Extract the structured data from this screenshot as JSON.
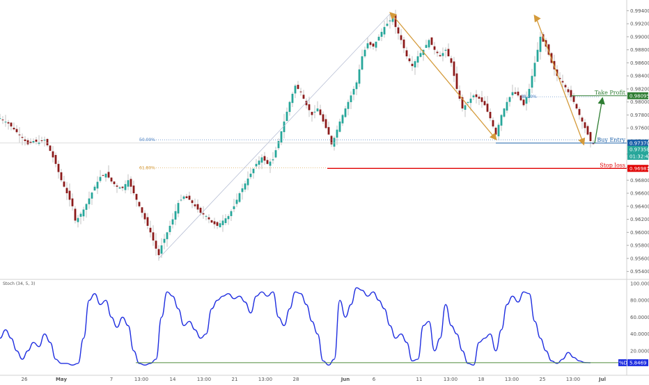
{
  "chart_data": {
    "type": "candlestick",
    "indicator_label": "Stoch (34, 5, 3)",
    "price_axis": {
      "ylim": [
        0.953,
        0.995
      ],
      "ticks": [
        "0.99400",
        "0.99200",
        "0.99000",
        "0.98800",
        "0.98600",
        "0.98400",
        "0.98200",
        "0.98000",
        "0.97800",
        "0.97600",
        "0.97400",
        "0.97200",
        "0.97000",
        "0.96800",
        "0.96600",
        "0.96400",
        "0.96200",
        "0.96000",
        "0.95800",
        "0.95600",
        "0.95400"
      ]
    },
    "stoch_axis": {
      "ylim": [
        0,
        100
      ],
      "ticks": [
        "100.0000",
        "80.0000",
        "60.0000",
        "40.0000",
        "20.0000"
      ]
    },
    "x_ticks": [
      "26",
      "May",
      "7",
      "13:00",
      "14",
      "13:00",
      "21",
      "13:00",
      "28",
      "Jun",
      "6",
      "11",
      "13:00",
      "18",
      "13:00",
      "25",
      "13:00",
      "Jul"
    ],
    "levels": [
      {
        "name": "Take Profit",
        "value": 0.98095,
        "label": "0.98095",
        "color": "#2e7d32"
      },
      {
        "name": "Buy Entry",
        "value": 0.9737,
        "label": "0.97370",
        "color": "#1a5fa8"
      },
      {
        "name": "Stop loss",
        "value": 0.96981,
        "label": "0.96981",
        "color": "#e00000"
      }
    ],
    "last_price": {
      "value": 0.97358,
      "label": "0.97358",
      "countdown": "01:32:43"
    },
    "fib_levels": [
      {
        "label": "50.00%",
        "value": 0.9742
      },
      {
        "label": "61.80%",
        "value": 0.9699
      },
      {
        "label": "38.20%",
        "value": 0.9808
      }
    ],
    "stoch_last": {
      "label": "%D",
      "value": "5.8469"
    },
    "candle_color_up": "#26a69a",
    "candle_color_down": "#8b1a1a",
    "arrow_color": "#d49a3a",
    "stoch_color": "#1f2ee0",
    "close_path": [
      [
        0,
        0.9775
      ],
      [
        3,
        0.9767
      ],
      [
        5,
        0.9758
      ],
      [
        8,
        0.9745
      ],
      [
        10,
        0.9735
      ],
      [
        12,
        0.974
      ],
      [
        14,
        0.9738
      ],
      [
        16,
        0.9742
      ],
      [
        18,
        0.9725
      ],
      [
        20,
        0.9705
      ],
      [
        22,
        0.968
      ],
      [
        24,
        0.966
      ],
      [
        26,
        0.964
      ],
      [
        27,
        0.9618
      ],
      [
        28,
        0.9622
      ],
      [
        30,
        0.9635
      ],
      [
        32,
        0.9652
      ],
      [
        34,
        0.967
      ],
      [
        36,
        0.9685
      ],
      [
        38,
        0.969
      ],
      [
        40,
        0.9678
      ],
      [
        42,
        0.967
      ],
      [
        44,
        0.9668
      ],
      [
        46,
        0.968
      ],
      [
        48,
        0.966
      ],
      [
        50,
        0.964
      ],
      [
        52,
        0.962
      ],
      [
        54,
        0.96
      ],
      [
        56,
        0.9575
      ],
      [
        57,
        0.9565
      ],
      [
        58,
        0.958
      ],
      [
        60,
        0.96
      ],
      [
        62,
        0.962
      ],
      [
        64,
        0.9645
      ],
      [
        66,
        0.9655
      ],
      [
        68,
        0.965
      ],
      [
        70,
        0.964
      ],
      [
        72,
        0.963
      ],
      [
        74,
        0.9625
      ],
      [
        76,
        0.9615
      ],
      [
        78,
        0.961
      ],
      [
        80,
        0.9618
      ],
      [
        82,
        0.9625
      ],
      [
        84,
        0.964
      ],
      [
        86,
        0.966
      ],
      [
        88,
        0.9675
      ],
      [
        90,
        0.969
      ],
      [
        92,
        0.9705
      ],
      [
        94,
        0.9715
      ],
      [
        96,
        0.9705
      ],
      [
        98,
        0.9712
      ],
      [
        100,
        0.974
      ],
      [
        102,
        0.977
      ],
      [
        104,
        0.98
      ],
      [
        106,
        0.9825
      ],
      [
        108,
        0.9815
      ],
      [
        110,
        0.9795
      ],
      [
        112,
        0.978
      ],
      [
        114,
        0.979
      ],
      [
        116,
        0.977
      ],
      [
        118,
        0.975
      ],
      [
        119,
        0.9735
      ],
      [
        120,
        0.9745
      ],
      [
        122,
        0.977
      ],
      [
        124,
        0.979
      ],
      [
        126,
        0.981
      ],
      [
        128,
        0.983
      ],
      [
        130,
        0.987
      ],
      [
        132,
        0.989
      ],
      [
        134,
        0.9885
      ],
      [
        136,
        0.99
      ],
      [
        138,
        0.9915
      ],
      [
        140,
        0.9925
      ],
      [
        141,
        0.993
      ],
      [
        142,
        0.9915
      ],
      [
        144,
        0.9895
      ],
      [
        146,
        0.987
      ],
      [
        148,
        0.9855
      ],
      [
        150,
        0.987
      ],
      [
        152,
        0.988
      ],
      [
        154,
        0.9895
      ],
      [
        156,
        0.988
      ],
      [
        158,
        0.987
      ],
      [
        160,
        0.988
      ],
      [
        162,
        0.986
      ],
      [
        164,
        0.982
      ],
      [
        166,
        0.979
      ],
      [
        168,
        0.98
      ],
      [
        170,
        0.981
      ],
      [
        172,
        0.9805
      ],
      [
        174,
        0.9795
      ],
      [
        176,
        0.9775
      ],
      [
        178,
        0.975
      ],
      [
        180,
        0.978
      ],
      [
        182,
        0.98
      ],
      [
        184,
        0.9815
      ],
      [
        186,
        0.981
      ],
      [
        188,
        0.9795
      ],
      [
        190,
        0.982
      ],
      [
        192,
        0.986
      ],
      [
        194,
        0.99
      ],
      [
        196,
        0.9885
      ],
      [
        198,
        0.986
      ],
      [
        200,
        0.984
      ],
      [
        202,
        0.983
      ],
      [
        204,
        0.9815
      ],
      [
        206,
        0.98
      ],
      [
        208,
        0.978
      ],
      [
        210,
        0.976
      ],
      [
        212,
        0.974
      ],
      [
        213,
        0.9736
      ]
    ],
    "stoch_path": [
      [
        0,
        35
      ],
      [
        2,
        45
      ],
      [
        4,
        35
      ],
      [
        6,
        20
      ],
      [
        8,
        10
      ],
      [
        10,
        20
      ],
      [
        12,
        30
      ],
      [
        14,
        25
      ],
      [
        16,
        40
      ],
      [
        18,
        30
      ],
      [
        20,
        10
      ],
      [
        22,
        5
      ],
      [
        24,
        5
      ],
      [
        26,
        3
      ],
      [
        28,
        5
      ],
      [
        30,
        35
      ],
      [
        32,
        80
      ],
      [
        34,
        88
      ],
      [
        36,
        75
      ],
      [
        38,
        80
      ],
      [
        40,
        60
      ],
      [
        42,
        48
      ],
      [
        44,
        60
      ],
      [
        46,
        50
      ],
      [
        48,
        20
      ],
      [
        50,
        5
      ],
      [
        52,
        3
      ],
      [
        54,
        5
      ],
      [
        56,
        10
      ],
      [
        58,
        60
      ],
      [
        60,
        90
      ],
      [
        62,
        85
      ],
      [
        64,
        70
      ],
      [
        66,
        50
      ],
      [
        68,
        55
      ],
      [
        70,
        45
      ],
      [
        72,
        35
      ],
      [
        74,
        40
      ],
      [
        76,
        70
      ],
      [
        78,
        80
      ],
      [
        80,
        85
      ],
      [
        82,
        88
      ],
      [
        84,
        82
      ],
      [
        86,
        85
      ],
      [
        88,
        78
      ],
      [
        90,
        65
      ],
      [
        92,
        85
      ],
      [
        94,
        90
      ],
      [
        96,
        85
      ],
      [
        98,
        90
      ],
      [
        100,
        60
      ],
      [
        102,
        50
      ],
      [
        104,
        70
      ],
      [
        106,
        90
      ],
      [
        108,
        88
      ],
      [
        110,
        75
      ],
      [
        112,
        55
      ],
      [
        114,
        40
      ],
      [
        116,
        8
      ],
      [
        118,
        3
      ],
      [
        120,
        10
      ],
      [
        122,
        80
      ],
      [
        124,
        60
      ],
      [
        126,
        75
      ],
      [
        128,
        95
      ],
      [
        130,
        92
      ],
      [
        132,
        85
      ],
      [
        134,
        90
      ],
      [
        136,
        80
      ],
      [
        138,
        70
      ],
      [
        140,
        50
      ],
      [
        142,
        35
      ],
      [
        144,
        40
      ],
      [
        146,
        30
      ],
      [
        148,
        8
      ],
      [
        150,
        10
      ],
      [
        152,
        50
      ],
      [
        154,
        55
      ],
      [
        156,
        20
      ],
      [
        158,
        35
      ],
      [
        160,
        75
      ],
      [
        162,
        50
      ],
      [
        164,
        40
      ],
      [
        166,
        20
      ],
      [
        168,
        5
      ],
      [
        170,
        3
      ],
      [
        172,
        30
      ],
      [
        174,
        35
      ],
      [
        176,
        40
      ],
      [
        178,
        20
      ],
      [
        180,
        45
      ],
      [
        182,
        75
      ],
      [
        184,
        85
      ],
      [
        186,
        78
      ],
      [
        188,
        90
      ],
      [
        190,
        88
      ],
      [
        192,
        55
      ],
      [
        194,
        35
      ],
      [
        196,
        20
      ],
      [
        198,
        8
      ],
      [
        200,
        5
      ],
      [
        202,
        10
      ],
      [
        204,
        18
      ],
      [
        206,
        12
      ],
      [
        208,
        8
      ],
      [
        210,
        6
      ],
      [
        212,
        5.8
      ]
    ]
  }
}
